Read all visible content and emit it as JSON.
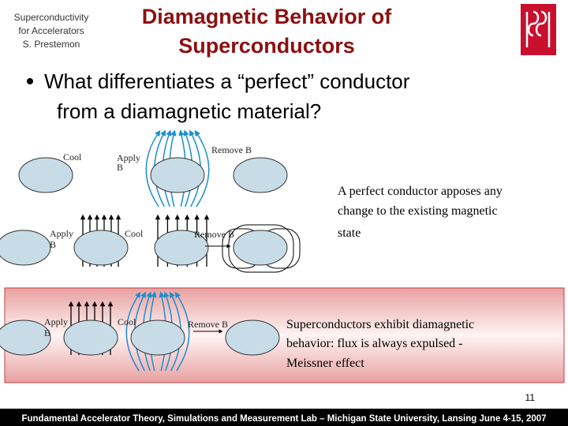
{
  "header": {
    "course_lines": [
      "Superconductivity",
      "for Accelerators",
      "S. Prestemon"
    ],
    "title_lines": [
      "Diamagnetic Behavior of",
      "Superconductors"
    ]
  },
  "bullet": {
    "lines": [
      "What differentiates a “perfect” conductor",
      "from a diamagnetic material?"
    ]
  },
  "diagram": {
    "row1": {
      "cool": "Cool",
      "apply_b": [
        "Apply",
        "B"
      ],
      "remove_b": "Remove B"
    },
    "row2": {
      "apply_b": [
        "Apply",
        "B"
      ],
      "cool": "Cool",
      "remove_b": "Remove B"
    },
    "row3": {
      "apply_b": [
        "Apply",
        "B"
      ],
      "cool": "Cool",
      "remove_b": "Remove B"
    }
  },
  "notes": {
    "perfect_conductor": [
      "A perfect conductor apposes any",
      "change to the existing magnetic",
      "state"
    ],
    "superconductor": [
      "Superconductors exhibit diamagnetic",
      "behavior: flux is always expulsed -",
      "Meissner effect"
    ]
  },
  "page_number": "11",
  "footer": "Fundamental Accelerator Theory, Simulations and Measurement Lab – Michigan State University, Lansing June 4-15, 2007"
}
